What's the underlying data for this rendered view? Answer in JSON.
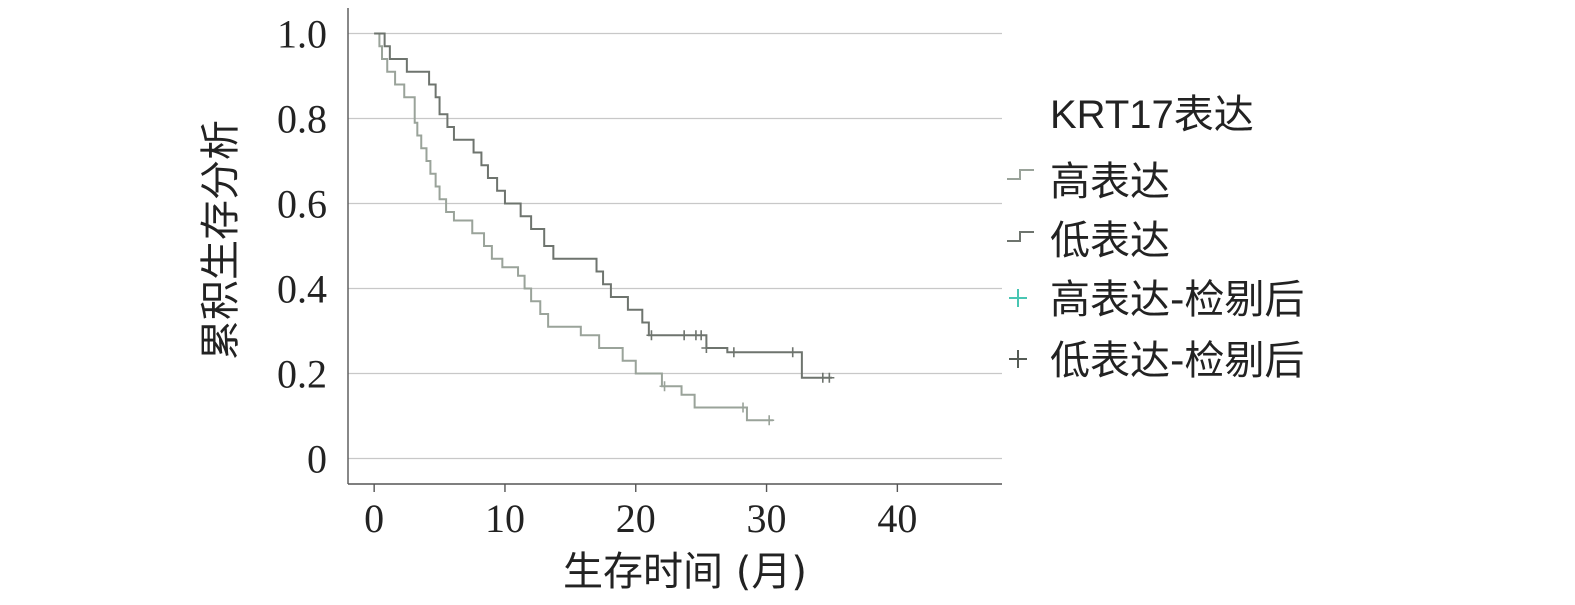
{
  "chart_data": {
    "type": "line",
    "subtype": "kaplan-meier survival curve",
    "xlabel": "生存时间 (月)",
    "ylabel": "累积生存分析",
    "xlim": [
      -2,
      48
    ],
    "ylim": [
      -0.06,
      1.06
    ],
    "xticks": [
      0,
      10,
      20,
      30,
      40
    ],
    "yticks": [
      0,
      0.2,
      0.4,
      0.6,
      0.8,
      1.0
    ],
    "ytick_labels": [
      "0",
      "0.2",
      "0.4",
      "0.6",
      "0.8",
      "1.0"
    ],
    "grid": "horizontal",
    "legend": {
      "title": "KRT17表达",
      "placement": "right",
      "entries": [
        "高表达",
        "低表达",
        "高表达-检剔后",
        "低表达-检剔后"
      ]
    },
    "series": [
      {
        "name": "高表达",
        "color": "#9aa39a",
        "points": [
          [
            0,
            1.0
          ],
          [
            0.4,
            0.97
          ],
          [
            0.6,
            0.94
          ],
          [
            1.0,
            0.91
          ],
          [
            1.6,
            0.88
          ],
          [
            2.3,
            0.85
          ],
          [
            3.1,
            0.79
          ],
          [
            3.3,
            0.76
          ],
          [
            3.6,
            0.73
          ],
          [
            4.0,
            0.7
          ],
          [
            4.3,
            0.67
          ],
          [
            4.7,
            0.64
          ],
          [
            5.0,
            0.61
          ],
          [
            5.5,
            0.58
          ],
          [
            6.1,
            0.56
          ],
          [
            7.5,
            0.53
          ],
          [
            8.4,
            0.5
          ],
          [
            9.0,
            0.47
          ],
          [
            9.8,
            0.45
          ],
          [
            11.0,
            0.43
          ],
          [
            11.5,
            0.4
          ],
          [
            12.0,
            0.37
          ],
          [
            12.7,
            0.34
          ],
          [
            13.3,
            0.31
          ],
          [
            15.8,
            0.29
          ],
          [
            17.2,
            0.26
          ],
          [
            19.0,
            0.23
          ],
          [
            20.0,
            0.2
          ],
          [
            22.0,
            0.17
          ],
          [
            23.5,
            0.15
          ],
          [
            24.5,
            0.12
          ],
          [
            28.5,
            0.09
          ],
          [
            30.5,
            0.09
          ]
        ]
      },
      {
        "name": "低表达",
        "color": "#6e746e",
        "points": [
          [
            0,
            1.0
          ],
          [
            0.8,
            0.97
          ],
          [
            1.2,
            0.94
          ],
          [
            2.5,
            0.91
          ],
          [
            4.2,
            0.88
          ],
          [
            4.7,
            0.85
          ],
          [
            5.0,
            0.81
          ],
          [
            5.6,
            0.78
          ],
          [
            6.1,
            0.75
          ],
          [
            7.6,
            0.72
          ],
          [
            8.2,
            0.69
          ],
          [
            8.7,
            0.66
          ],
          [
            9.4,
            0.63
          ],
          [
            10.0,
            0.6
          ],
          [
            11.2,
            0.57
          ],
          [
            12.0,
            0.54
          ],
          [
            13.0,
            0.5
          ],
          [
            13.7,
            0.47
          ],
          [
            17.0,
            0.44
          ],
          [
            17.5,
            0.41
          ],
          [
            18.1,
            0.38
          ],
          [
            19.4,
            0.35
          ],
          [
            20.5,
            0.32
          ],
          [
            21.0,
            0.29
          ],
          [
            25.4,
            0.26
          ],
          [
            27.0,
            0.25
          ],
          [
            32.7,
            0.19
          ],
          [
            35.0,
            0.19
          ]
        ]
      }
    ],
    "censored": [
      {
        "name": "高表达-检剔后",
        "x": [
          22.2,
          28.2,
          30.2
        ]
      },
      {
        "name": "低表达-检剔后",
        "x": [
          21.2,
          23.7,
          24.6,
          25.0,
          25.4,
          27.5,
          32.0,
          34.3,
          34.8
        ]
      }
    ]
  }
}
